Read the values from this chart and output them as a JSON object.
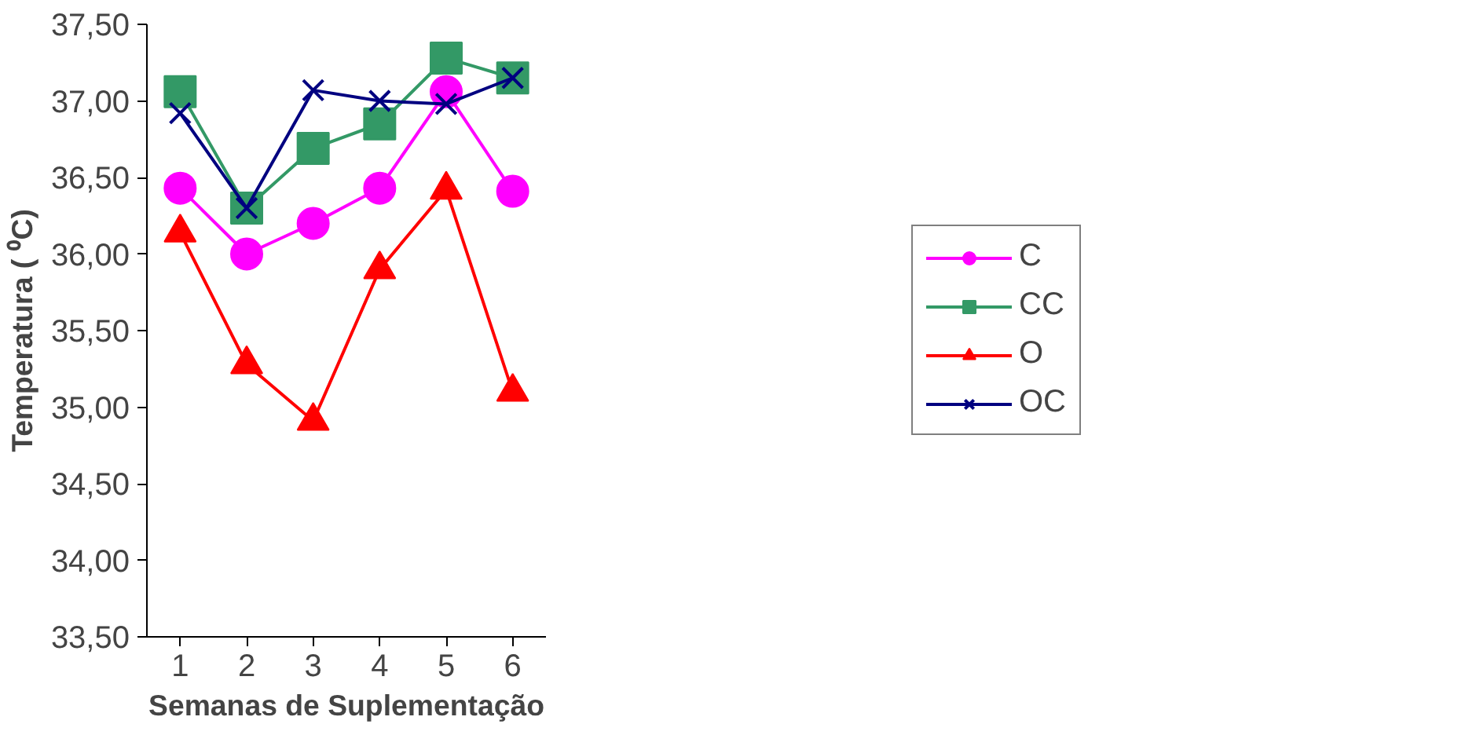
{
  "chart_data": {
    "type": "line",
    "xlabel": "Semanas de Suplementação",
    "ylabel": "Temperatura ( ⁰C)",
    "categories": [
      "1",
      "2",
      "3",
      "4",
      "5",
      "6"
    ],
    "ylim": [
      33.5,
      37.5
    ],
    "yticks": [
      {
        "value": 33.5,
        "label": "33,50"
      },
      {
        "value": 34.0,
        "label": "34,00"
      },
      {
        "value": 34.5,
        "label": "34,50"
      },
      {
        "value": 35.0,
        "label": "35,00"
      },
      {
        "value": 35.5,
        "label": "35,50"
      },
      {
        "value": 36.0,
        "label": "36,00"
      },
      {
        "value": 36.5,
        "label": "36,50"
      },
      {
        "value": 37.0,
        "label": "37,00"
      },
      {
        "value": 37.5,
        "label": "37,50"
      }
    ],
    "grid": false,
    "legend": "right",
    "line_style": "solid",
    "series": [
      {
        "name": "C",
        "color": "#ff00ff",
        "marker": "circle",
        "values": [
          36.43,
          36.0,
          36.2,
          36.43,
          37.06,
          36.41
        ]
      },
      {
        "name": "CC",
        "color": "#339966",
        "marker": "square",
        "values": [
          37.06,
          36.3,
          36.69,
          36.85,
          37.28,
          37.15
        ]
      },
      {
        "name": "O",
        "color": "#ff0000",
        "marker": "triangle",
        "values": [
          36.14,
          35.28,
          34.91,
          35.9,
          36.42,
          35.1
        ]
      },
      {
        "name": "OC",
        "color": "#000080",
        "marker": "cross",
        "values": [
          36.92,
          36.3,
          37.07,
          37.0,
          36.98,
          37.15
        ]
      }
    ]
  }
}
